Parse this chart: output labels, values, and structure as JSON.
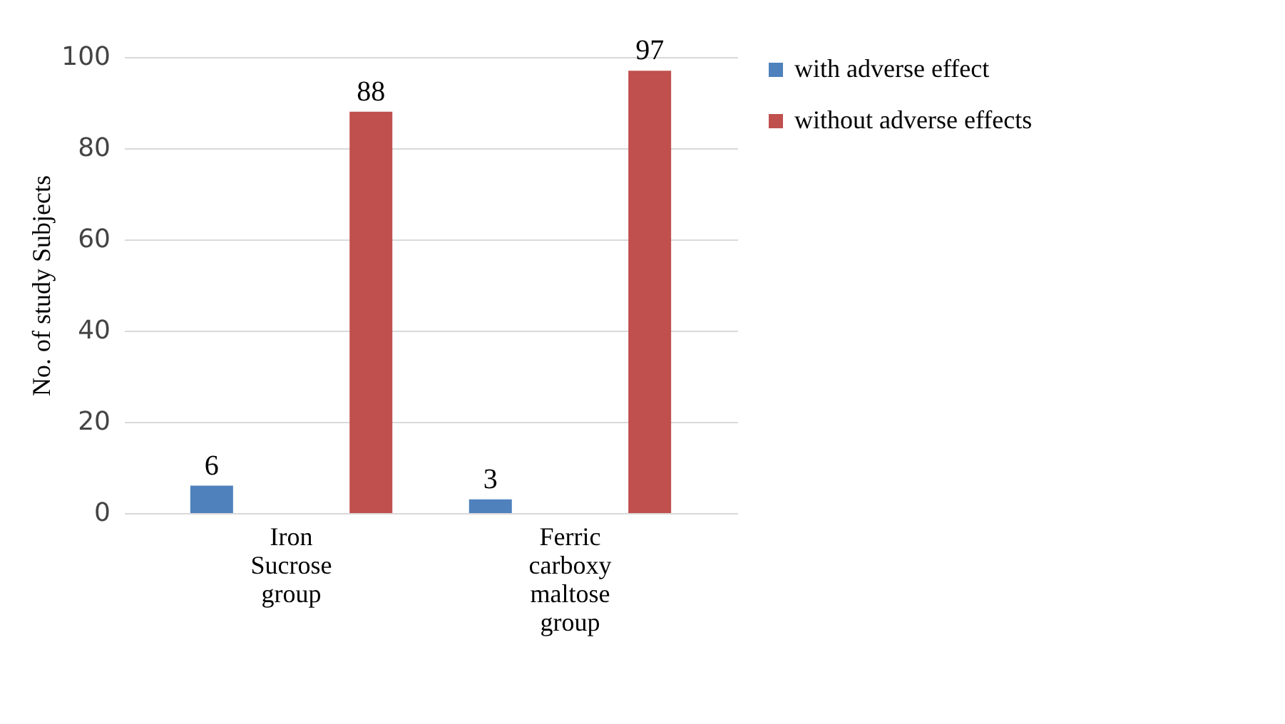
{
  "chart_data": {
    "type": "bar",
    "ylabel": "No. of study Subjects",
    "categories": [
      "Iron Sucrose group",
      "Ferric carboxy maltose group"
    ],
    "series": [
      {
        "name": "with adverse effect",
        "color": "#4f81bd",
        "values": [
          6,
          3
        ]
      },
      {
        "name": "without adverse effects",
        "color": "#c0504d",
        "values": [
          88,
          97
        ]
      }
    ],
    "ylim": [
      0,
      100
    ],
    "yticks": [
      0,
      20,
      40,
      60,
      80,
      100
    ],
    "grid": "y",
    "legend": "right",
    "data_labels": true
  }
}
